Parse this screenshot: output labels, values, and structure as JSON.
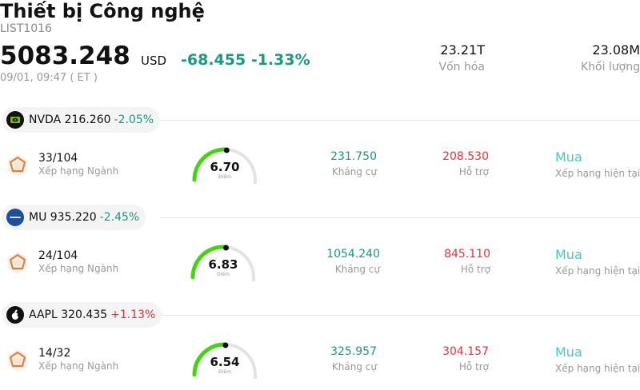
{
  "header": {
    "title": "Thiết bị Công nghệ",
    "code": "LIST1016",
    "price": "5083.248",
    "currency": "USD",
    "change": "-68.455 -1.33%",
    "time": "09/01, 09:47  ( ET )",
    "market_cap_value": "23.21T",
    "market_cap_label": "Vốn hóa",
    "volume_value": "23.08M",
    "volume_label": "Khối lượng"
  },
  "colors": {
    "negative": "#1a9a80",
    "positive": "#e8323c",
    "gauge_fill": "#44d411",
    "gauge_track": "#e2e2e8",
    "rating": "#3ccfc0",
    "rank_icon": "#f07c2a"
  },
  "stocks": [
    {
      "chip_text": "NVDA 216.260",
      "pct": "-2.05%",
      "direction": "negative",
      "logo_icon": "nvidia-logo-icon",
      "rank": "33/104",
      "rank_label": "Xếp hạng Ngành",
      "score": "6.70",
      "score_value": 6.7,
      "score_label": "Điểm",
      "resistance": "231.750",
      "resistance_label": "Kháng cự",
      "support": "208.530",
      "support_label": "Hỗ trợ",
      "rating": "Mua",
      "rating_label": "Xếp hạng hiện tại"
    },
    {
      "chip_text": "MU 935.220",
      "pct": "-2.45%",
      "direction": "negative",
      "logo_icon": "micron-logo-icon",
      "rank": "24/104",
      "rank_label": "Xếp hạng Ngành",
      "score": "6.83",
      "score_value": 6.83,
      "score_label": "Điểm",
      "resistance": "1054.240",
      "resistance_label": "Kháng cự",
      "support": "845.110",
      "support_label": "Hỗ trợ",
      "rating": "Mua",
      "rating_label": "Xếp hạng hiện tại"
    },
    {
      "chip_text": "AAPL 320.435",
      "pct": "+1.13%",
      "direction": "positive",
      "logo_icon": "apple-logo-icon",
      "rank": "14/32",
      "rank_label": "Xếp hạng Ngành",
      "score": "6.54",
      "score_value": 6.54,
      "score_label": "Điểm",
      "resistance": "325.957",
      "resistance_label": "Kháng cự",
      "support": "304.157",
      "support_label": "Hỗ trợ",
      "rating": "Mua",
      "rating_label": "Xếp hạng hiện tại"
    }
  ]
}
